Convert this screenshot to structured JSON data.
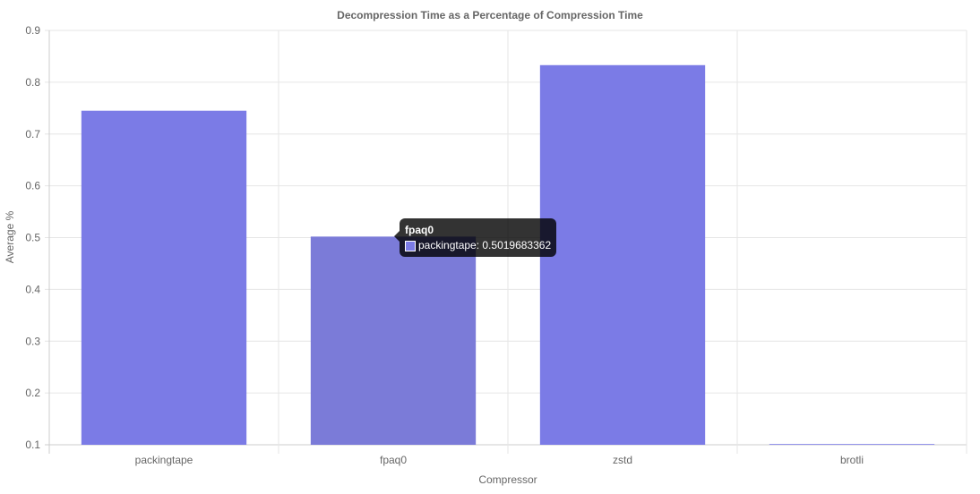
{
  "chart_data": {
    "type": "bar",
    "title": "Decompression Time as a Percentage of Compression Time",
    "xlabel": "Compressor",
    "ylabel": "Average %",
    "categories": [
      "packingtape",
      "fpaq0",
      "zstd",
      "brotli"
    ],
    "series": [
      {
        "name": "packingtape",
        "values": [
          0.745,
          0.5019683362,
          0.833,
          0.101
        ],
        "color": "#7b7be6"
      }
    ],
    "ylim": [
      0.1,
      0.9
    ],
    "yticks": [
      "0.1",
      "0.2",
      "0.3",
      "0.4",
      "0.5",
      "0.6",
      "0.7",
      "0.8",
      "0.9"
    ],
    "grid": true,
    "legend": "none",
    "hovered_bar_color": "#7b7bd8"
  },
  "tooltip": {
    "title": "fpaq0",
    "label": "packingtape: 0.5019683362",
    "swatch_color": "#7b7be6"
  }
}
